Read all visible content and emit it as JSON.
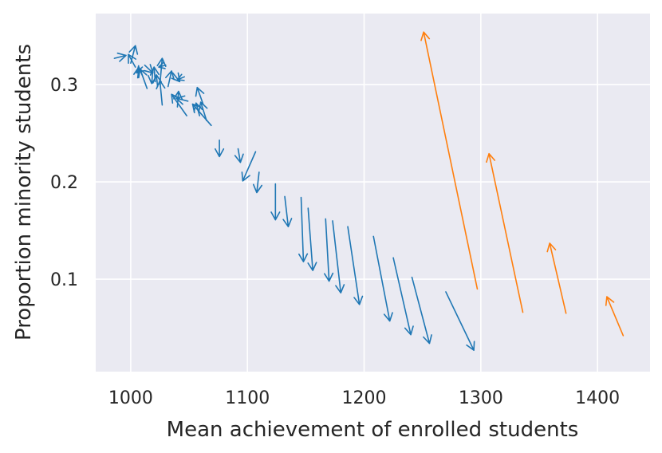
{
  "chart_data": {
    "type": "quiver",
    "xlabel": "Mean achievement of enrolled students",
    "ylabel": "Proportion minority students",
    "xlim": [
      970,
      1445
    ],
    "ylim": [
      0.005,
      0.373
    ],
    "x_ticks": [
      1000,
      1100,
      1200,
      1300,
      1400
    ],
    "y_ticks": [
      0.1,
      0.2,
      0.3
    ],
    "x_tick_labels": [
      "1000",
      "1100",
      "1200",
      "1300",
      "1400"
    ],
    "y_tick_labels": [
      "0.1",
      "0.2",
      "0.3"
    ],
    "grid": true,
    "background": "#eaeaf2",
    "series": [
      {
        "color": "#1f77b4",
        "arrows": [
          {
            "x0": 986,
            "y0": 0.327,
            "x1": 996,
            "y1": 0.33
          },
          {
            "x0": 1000,
            "y0": 0.322,
            "x1": 1004,
            "y1": 0.34
          },
          {
            "x0": 1004,
            "y0": 0.318,
            "x1": 998,
            "y1": 0.331
          },
          {
            "x0": 1006,
            "y0": 0.307,
            "x1": 1007,
            "y1": 0.318
          },
          {
            "x0": 1010,
            "y0": 0.318,
            "x1": 1005,
            "y1": 0.312
          },
          {
            "x0": 1014,
            "y0": 0.296,
            "x1": 1008,
            "y1": 0.316
          },
          {
            "x0": 1012,
            "y0": 0.32,
            "x1": 1019,
            "y1": 0.312
          },
          {
            "x0": 1019,
            "y0": 0.315,
            "x1": 1018,
            "y1": 0.301
          },
          {
            "x0": 1021,
            "y0": 0.303,
            "x1": 1020,
            "y1": 0.318
          },
          {
            "x0": 1023,
            "y0": 0.298,
            "x1": 1022,
            "y1": 0.31
          },
          {
            "x0": 1025,
            "y0": 0.3,
            "x1": 1027,
            "y1": 0.327
          },
          {
            "x0": 1027,
            "y0": 0.279,
            "x1": 1025,
            "y1": 0.304
          },
          {
            "x0": 1030,
            "y0": 0.32,
            "x1": 1024,
            "y1": 0.318
          },
          {
            "x0": 1032,
            "y0": 0.298,
            "x1": 1035,
            "y1": 0.314
          },
          {
            "x0": 1036,
            "y0": 0.312,
            "x1": 1042,
            "y1": 0.303
          },
          {
            "x0": 1040,
            "y0": 0.277,
            "x1": 1041,
            "y1": 0.293
          },
          {
            "x0": 1046,
            "y0": 0.308,
            "x1": 1040,
            "y1": 0.305
          },
          {
            "x0": 1049,
            "y0": 0.283,
            "x1": 1039,
            "y1": 0.286
          },
          {
            "x0": 1048,
            "y0": 0.268,
            "x1": 1035,
            "y1": 0.29
          },
          {
            "x0": 1059,
            "y0": 0.268,
            "x1": 1056,
            "y1": 0.281
          },
          {
            "x0": 1062,
            "y0": 0.28,
            "x1": 1057,
            "y1": 0.297
          },
          {
            "x0": 1065,
            "y0": 0.263,
            "x1": 1060,
            "y1": 0.282
          },
          {
            "x0": 1069,
            "y0": 0.258,
            "x1": 1053,
            "y1": 0.28
          },
          {
            "x0": 1076,
            "y0": 0.243,
            "x1": 1076,
            "y1": 0.226
          },
          {
            "x0": 1092,
            "y0": 0.234,
            "x1": 1094,
            "y1": 0.22
          },
          {
            "x0": 1107,
            "y0": 0.231,
            "x1": 1096,
            "y1": 0.201
          },
          {
            "x0": 1110,
            "y0": 0.21,
            "x1": 1108,
            "y1": 0.189
          },
          {
            "x0": 1124,
            "y0": 0.198,
            "x1": 1124,
            "y1": 0.161
          },
          {
            "x0": 1132,
            "y0": 0.185,
            "x1": 1135,
            "y1": 0.154
          },
          {
            "x0": 1146,
            "y0": 0.184,
            "x1": 1148,
            "y1": 0.118
          },
          {
            "x0": 1152,
            "y0": 0.173,
            "x1": 1156,
            "y1": 0.109
          },
          {
            "x0": 1167,
            "y0": 0.162,
            "x1": 1170,
            "y1": 0.098
          },
          {
            "x0": 1173,
            "y0": 0.16,
            "x1": 1180,
            "y1": 0.086
          },
          {
            "x0": 1186,
            "y0": 0.154,
            "x1": 1196,
            "y1": 0.074
          },
          {
            "x0": 1208,
            "y0": 0.144,
            "x1": 1222,
            "y1": 0.057
          },
          {
            "x0": 1225,
            "y0": 0.122,
            "x1": 1240,
            "y1": 0.043
          },
          {
            "x0": 1241,
            "y0": 0.102,
            "x1": 1256,
            "y1": 0.034
          },
          {
            "x0": 1270,
            "y0": 0.087,
            "x1": 1294,
            "y1": 0.027
          }
        ]
      },
      {
        "color": "#ff7f0e",
        "arrows": [
          {
            "x0": 1297,
            "y0": 0.09,
            "x1": 1251,
            "y1": 0.354
          },
          {
            "x0": 1336,
            "y0": 0.066,
            "x1": 1307,
            "y1": 0.229
          },
          {
            "x0": 1373,
            "y0": 0.065,
            "x1": 1359,
            "y1": 0.137
          },
          {
            "x0": 1422,
            "y0": 0.042,
            "x1": 1408,
            "y1": 0.082
          }
        ]
      }
    ]
  }
}
